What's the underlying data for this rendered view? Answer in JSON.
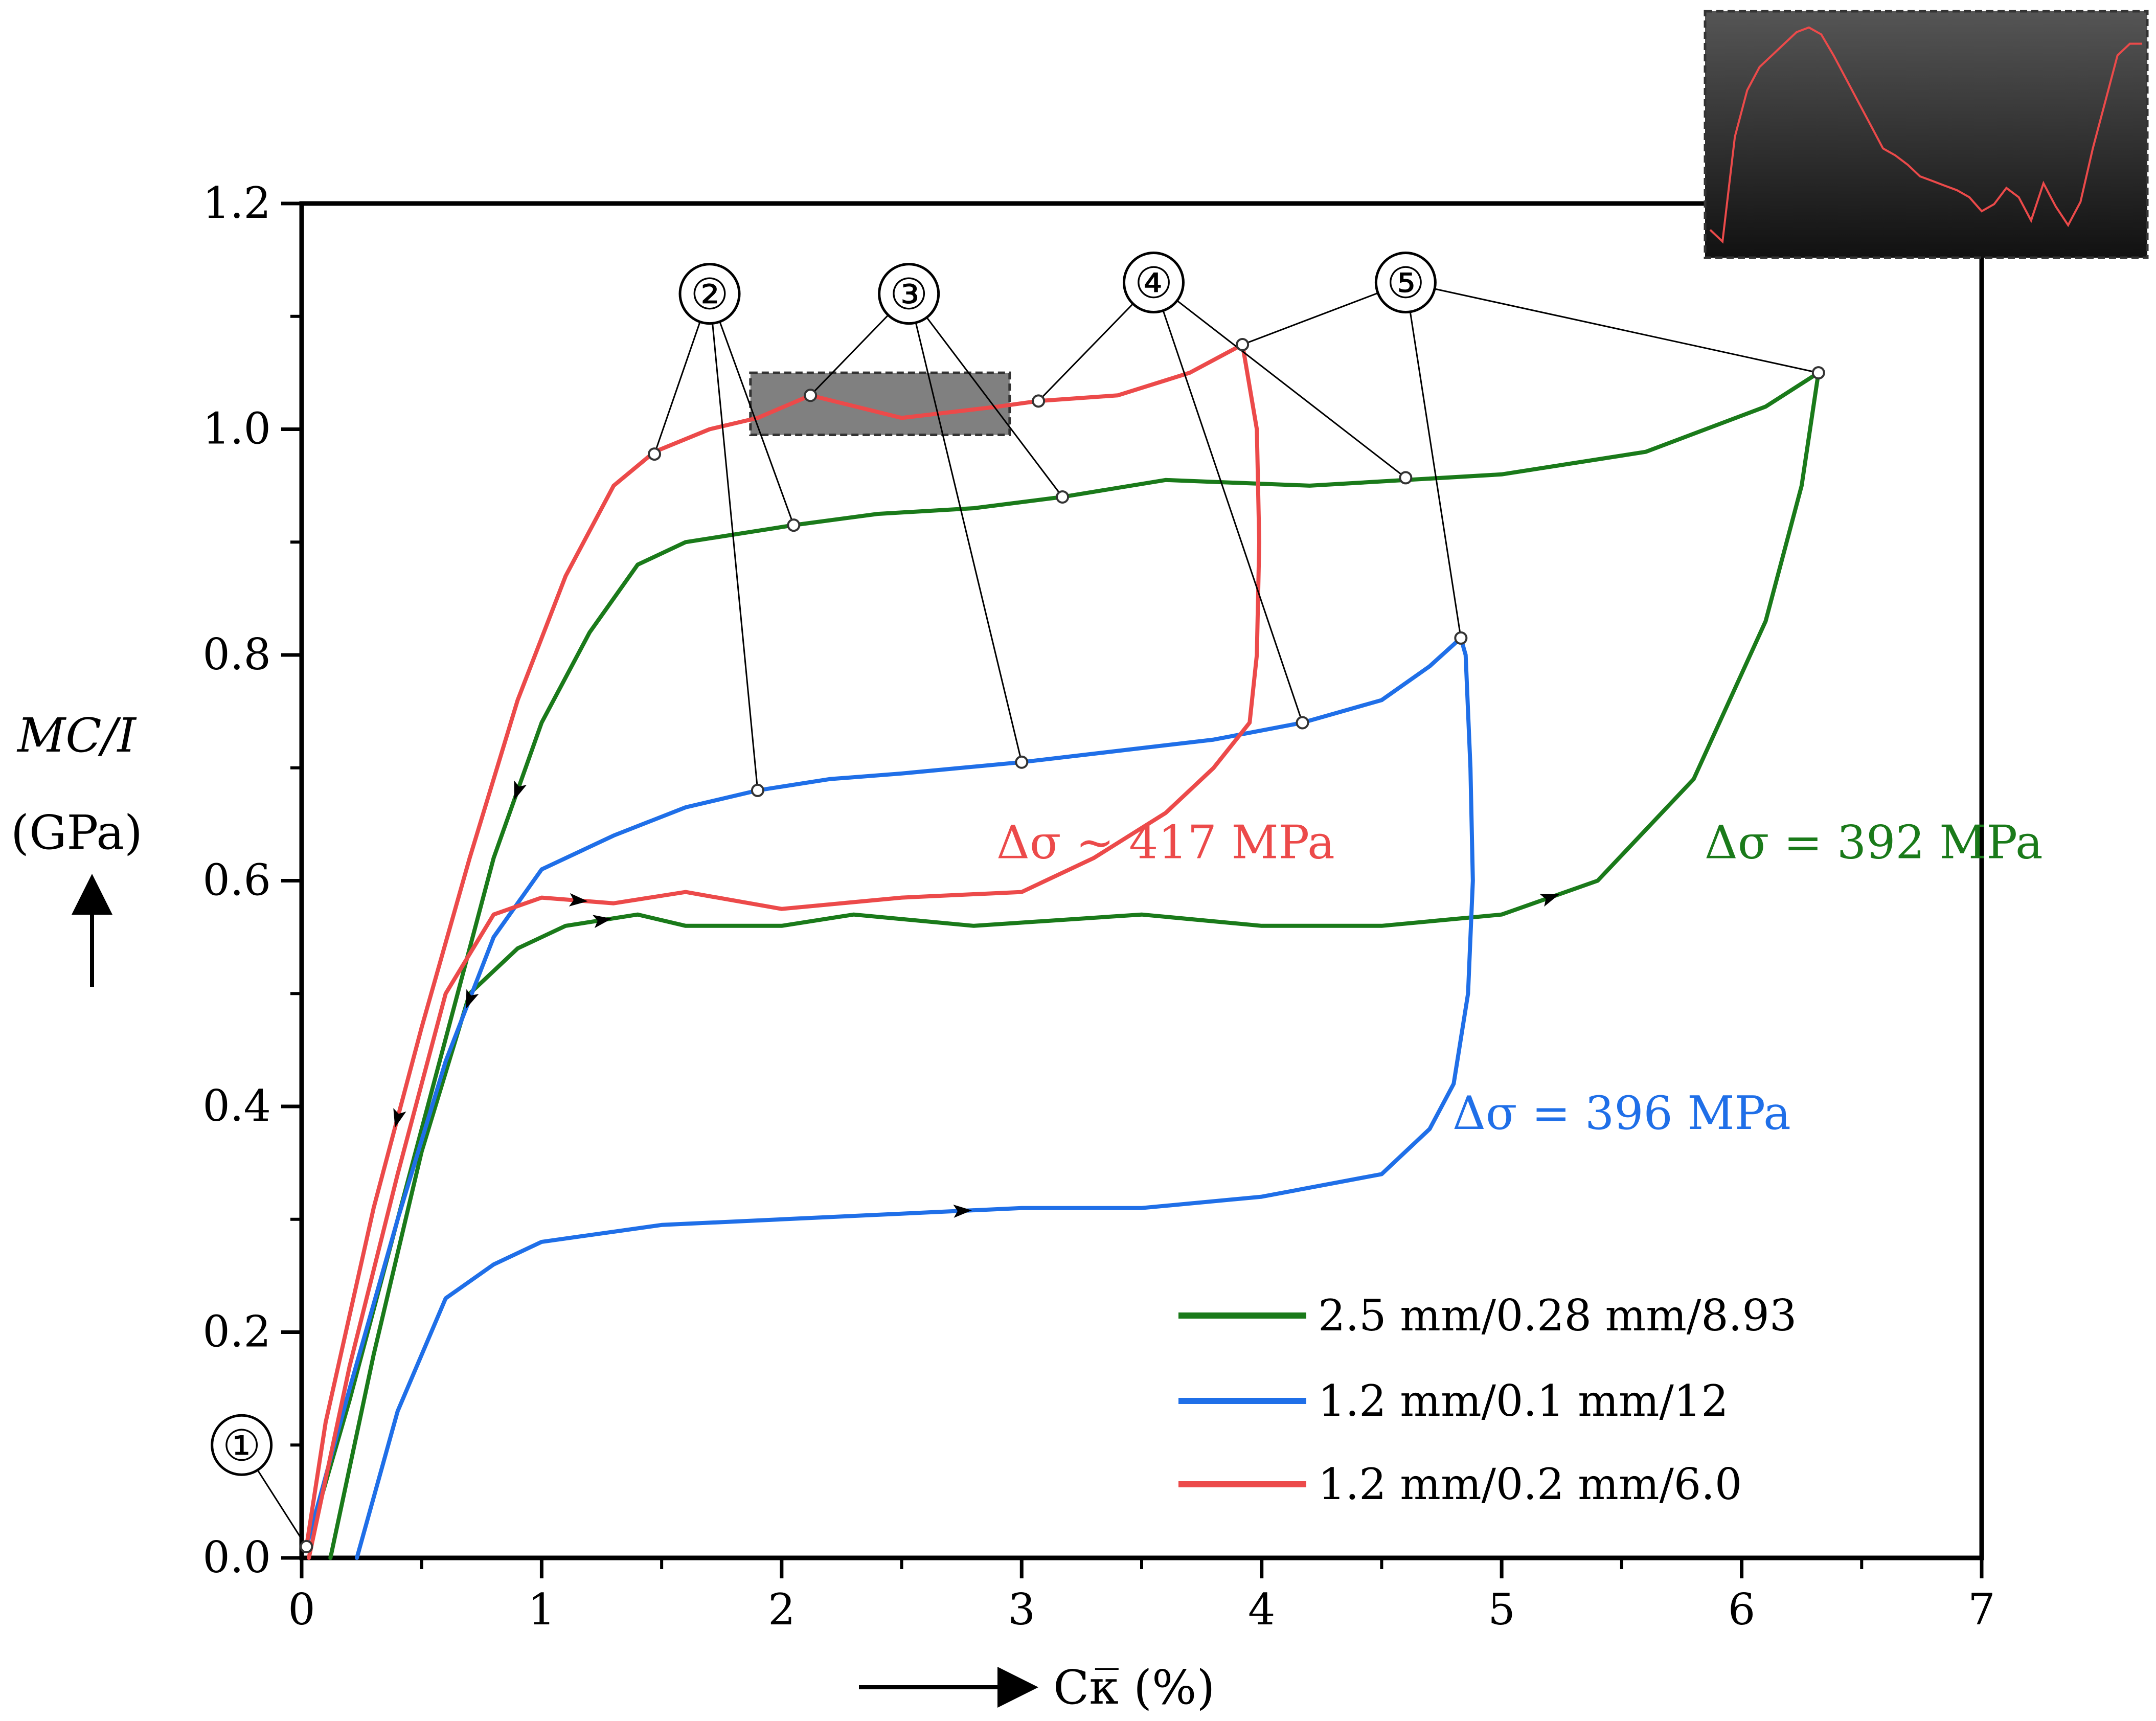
{
  "chart_data": {
    "type": "line",
    "title": "",
    "xlabel": "Cκ̅ (%)",
    "ylabel_lines": [
      "MC/I",
      "(GPa)"
    ],
    "xlim": [
      0,
      7
    ],
    "ylim": [
      0,
      1.2
    ],
    "x_ticks": [
      "0",
      "1",
      "2",
      "3",
      "4",
      "5",
      "6",
      "7"
    ],
    "y_ticks": [
      "0.0",
      "0.2",
      "0.4",
      "0.6",
      "0.8",
      "1.0",
      "1.2"
    ],
    "series": [
      {
        "name": "2.5 mm/0.28 mm/8.93",
        "color": "#1a7a1a",
        "points": [
          [
            0.12,
            0.0
          ],
          [
            0.3,
            0.18
          ],
          [
            0.5,
            0.36
          ],
          [
            0.7,
            0.5
          ],
          [
            0.9,
            0.54
          ],
          [
            1.1,
            0.56
          ],
          [
            1.4,
            0.57
          ],
          [
            1.6,
            0.56
          ],
          [
            2.0,
            0.56
          ],
          [
            2.3,
            0.57
          ],
          [
            2.8,
            0.56
          ],
          [
            3.5,
            0.57
          ],
          [
            4.0,
            0.56
          ],
          [
            4.5,
            0.56
          ],
          [
            5.0,
            0.57
          ],
          [
            5.4,
            0.6
          ],
          [
            5.8,
            0.69
          ],
          [
            6.1,
            0.83
          ],
          [
            6.25,
            0.95
          ],
          [
            6.32,
            1.05
          ],
          [
            6.1,
            1.02
          ],
          [
            5.6,
            0.98
          ],
          [
            5.0,
            0.96
          ],
          [
            4.6,
            0.955
          ],
          [
            4.2,
            0.95
          ],
          [
            3.6,
            0.955
          ],
          [
            3.17,
            0.94
          ],
          [
            2.8,
            0.93
          ],
          [
            2.4,
            0.925
          ],
          [
            2.05,
            0.915
          ],
          [
            1.9,
            0.91
          ],
          [
            1.6,
            0.9
          ],
          [
            1.4,
            0.88
          ],
          [
            1.2,
            0.82
          ],
          [
            1.0,
            0.74
          ],
          [
            0.8,
            0.62
          ],
          [
            0.6,
            0.46
          ],
          [
            0.4,
            0.3
          ],
          [
            0.2,
            0.14
          ],
          [
            0.05,
            0.03
          ]
        ]
      },
      {
        "name": "1.2 mm/0.1 mm/12",
        "color": "#1f6fe8",
        "points": [
          [
            0.23,
            0.0
          ],
          [
            0.4,
            0.13
          ],
          [
            0.6,
            0.23
          ],
          [
            0.8,
            0.26
          ],
          [
            1.0,
            0.28
          ],
          [
            1.5,
            0.295
          ],
          [
            2.0,
            0.3
          ],
          [
            2.5,
            0.305
          ],
          [
            3.0,
            0.31
          ],
          [
            3.5,
            0.31
          ],
          [
            4.0,
            0.32
          ],
          [
            4.5,
            0.34
          ],
          [
            4.7,
            0.38
          ],
          [
            4.8,
            0.42
          ],
          [
            4.86,
            0.5
          ],
          [
            4.88,
            0.6
          ],
          [
            4.87,
            0.7
          ],
          [
            4.85,
            0.8
          ],
          [
            4.83,
            0.815
          ],
          [
            4.7,
            0.79
          ],
          [
            4.5,
            0.76
          ],
          [
            4.17,
            0.74
          ],
          [
            3.8,
            0.725
          ],
          [
            3.4,
            0.715
          ],
          [
            3.0,
            0.705
          ],
          [
            2.5,
            0.695
          ],
          [
            2.2,
            0.69
          ],
          [
            1.9,
            0.68
          ],
          [
            1.6,
            0.665
          ],
          [
            1.3,
            0.64
          ],
          [
            1.0,
            0.61
          ],
          [
            0.8,
            0.55
          ],
          [
            0.6,
            0.44
          ],
          [
            0.4,
            0.3
          ],
          [
            0.2,
            0.15
          ],
          [
            0.02,
            0.01
          ]
        ]
      },
      {
        "name": "1.2 mm/0.2 mm/6.0",
        "color": "#ec4a4a",
        "points": [
          [
            0.03,
            0.0
          ],
          [
            0.2,
            0.17
          ],
          [
            0.4,
            0.34
          ],
          [
            0.6,
            0.5
          ],
          [
            0.8,
            0.57
          ],
          [
            1.0,
            0.585
          ],
          [
            1.3,
            0.58
          ],
          [
            1.6,
            0.59
          ],
          [
            2.0,
            0.575
          ],
          [
            2.5,
            0.585
          ],
          [
            3.0,
            0.59
          ],
          [
            3.3,
            0.62
          ],
          [
            3.6,
            0.66
          ],
          [
            3.8,
            0.7
          ],
          [
            3.95,
            0.74
          ],
          [
            3.98,
            0.8
          ],
          [
            3.99,
            0.9
          ],
          [
            3.98,
            1.0
          ],
          [
            3.92,
            1.075
          ],
          [
            3.7,
            1.05
          ],
          [
            3.4,
            1.03
          ],
          [
            3.07,
            1.025
          ],
          [
            2.9,
            1.02
          ],
          [
            2.5,
            1.01
          ],
          [
            2.12,
            1.03
          ],
          [
            1.9,
            1.01
          ],
          [
            1.7,
            1.0
          ],
          [
            1.47,
            0.98
          ],
          [
            1.3,
            0.95
          ],
          [
            1.1,
            0.87
          ],
          [
            0.9,
            0.76
          ],
          [
            0.7,
            0.62
          ],
          [
            0.5,
            0.47
          ],
          [
            0.3,
            0.31
          ],
          [
            0.1,
            0.12
          ],
          [
            0.02,
            0.01
          ]
        ]
      }
    ],
    "legend": {
      "placement": "bottom-right",
      "entries": [
        {
          "label": "2.5 mm/0.28 mm/8.93",
          "color": "#1a7a1a"
        },
        {
          "label": "1.2 mm/0.1 mm/12",
          "color": "#1f6fe8"
        },
        {
          "label": "1.2 mm/0.2 mm/6.0",
          "color": "#ec4a4a"
        }
      ]
    },
    "annotations": [
      {
        "text": "Δσ ~ 417 MPa",
        "color": "#ec4a4a",
        "x": 3.6,
        "y": 0.62
      },
      {
        "text": "Δσ = 392 MPa",
        "color": "#1a7a1a",
        "x": 6.55,
        "y": 0.62
      },
      {
        "text": "Δσ = 396 MPa",
        "color": "#1f6fe8",
        "x": 5.5,
        "y": 0.38
      }
    ],
    "stage_markers": [
      {
        "label": "①",
        "x": -0.25,
        "y": 0.1,
        "targets": [
          [
            0.02,
            0.01
          ]
        ]
      },
      {
        "label": "②",
        "x": 1.7,
        "y": 1.12,
        "targets": [
          [
            1.47,
            0.978
          ],
          [
            2.05,
            0.915
          ],
          [
            1.9,
            0.68
          ]
        ]
      },
      {
        "label": "③",
        "x": 2.53,
        "y": 1.12,
        "targets": [
          [
            2.12,
            1.03
          ],
          [
            3.17,
            0.94
          ],
          [
            3.0,
            0.705
          ]
        ]
      },
      {
        "label": "④",
        "x": 3.55,
        "y": 1.13,
        "targets": [
          [
            3.07,
            1.025
          ],
          [
            4.6,
            0.957
          ],
          [
            4.17,
            0.74
          ]
        ]
      },
      {
        "label": "⑤",
        "x": 4.6,
        "y": 1.13,
        "targets": [
          [
            3.92,
            1.075
          ],
          [
            4.83,
            0.815
          ],
          [
            6.32,
            1.05
          ]
        ]
      }
    ],
    "highlight_box": {
      "x_range": [
        1.87,
        2.95
      ],
      "y_range": [
        0.995,
        1.05
      ]
    },
    "inset": {
      "description": "zoom of highlighted region",
      "series_color": "#ec4a4a",
      "values": [
        0.1,
        0.05,
        0.5,
        0.7,
        0.8,
        0.85,
        0.9,
        0.95,
        0.97,
        0.94,
        0.85,
        0.75,
        0.65,
        0.55,
        0.45,
        0.42,
        0.38,
        0.33,
        0.31,
        0.29,
        0.27,
        0.24,
        0.18,
        0.21,
        0.28,
        0.24,
        0.14,
        0.3,
        0.2,
        0.12,
        0.22,
        0.45,
        0.65,
        0.85,
        0.9,
        0.9
      ]
    }
  }
}
